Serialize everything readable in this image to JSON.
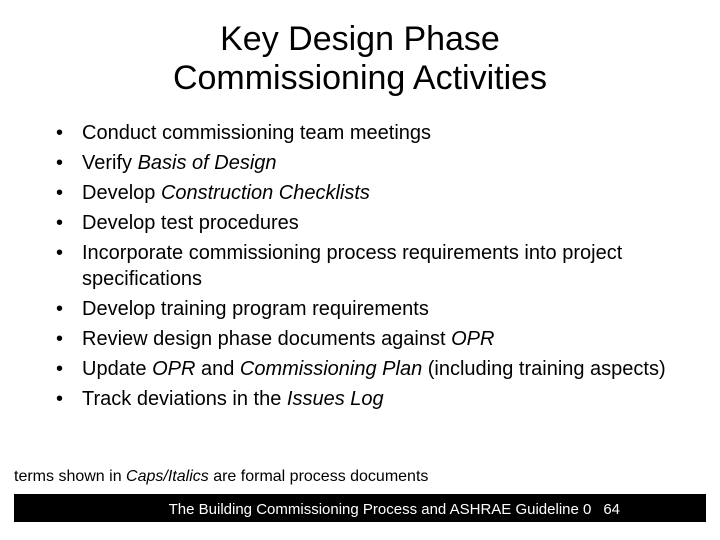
{
  "colors": {
    "background": "#ffffff",
    "text": "#000000",
    "footer_bg": "#000000",
    "footer_text": "#ffffff"
  },
  "typography": {
    "title_fontsize": 34,
    "bullet_fontsize": 20,
    "note_fontsize": 16,
    "footer_fontsize": 15,
    "font_family": "Arial"
  },
  "title": {
    "line1": "Key Design Phase",
    "line2": "Commissioning Activities"
  },
  "bullets": [
    {
      "segments": [
        {
          "text": "Conduct commissioning team meetings",
          "italic": false
        }
      ]
    },
    {
      "segments": [
        {
          "text": "Verify ",
          "italic": false
        },
        {
          "text": "Basis of Design",
          "italic": true
        }
      ]
    },
    {
      "segments": [
        {
          "text": "Develop ",
          "italic": false
        },
        {
          "text": "Construction Checklists",
          "italic": true
        }
      ]
    },
    {
      "segments": [
        {
          "text": "Develop test procedures",
          "italic": false
        }
      ]
    },
    {
      "segments": [
        {
          "text": "Incorporate commissioning process requirements into project specifications",
          "italic": false
        }
      ]
    },
    {
      "segments": [
        {
          "text": "Develop training program requirements",
          "italic": false
        }
      ]
    },
    {
      "segments": [
        {
          "text": "Review design phase documents against ",
          "italic": false
        },
        {
          "text": "OPR",
          "italic": true
        }
      ]
    },
    {
      "segments": [
        {
          "text": "Update ",
          "italic": false
        },
        {
          "text": "OPR",
          "italic": true
        },
        {
          "text": " and ",
          "italic": false
        },
        {
          "text": "Commissioning Plan",
          "italic": true
        },
        {
          "text": " (including training aspects)",
          "italic": false
        }
      ]
    },
    {
      "segments": [
        {
          "text": "Track deviations in the ",
          "italic": false
        },
        {
          "text": "Issues Log",
          "italic": true
        }
      ]
    }
  ],
  "note": {
    "segments": [
      {
        "text": "terms shown in ",
        "italic": false
      },
      {
        "text": "Caps/Italics",
        "italic": true
      },
      {
        "text": " are formal process documents",
        "italic": false
      }
    ]
  },
  "footer": {
    "text": "The Building Commissioning Process and ASHRAE Guideline 0",
    "page": "64"
  }
}
